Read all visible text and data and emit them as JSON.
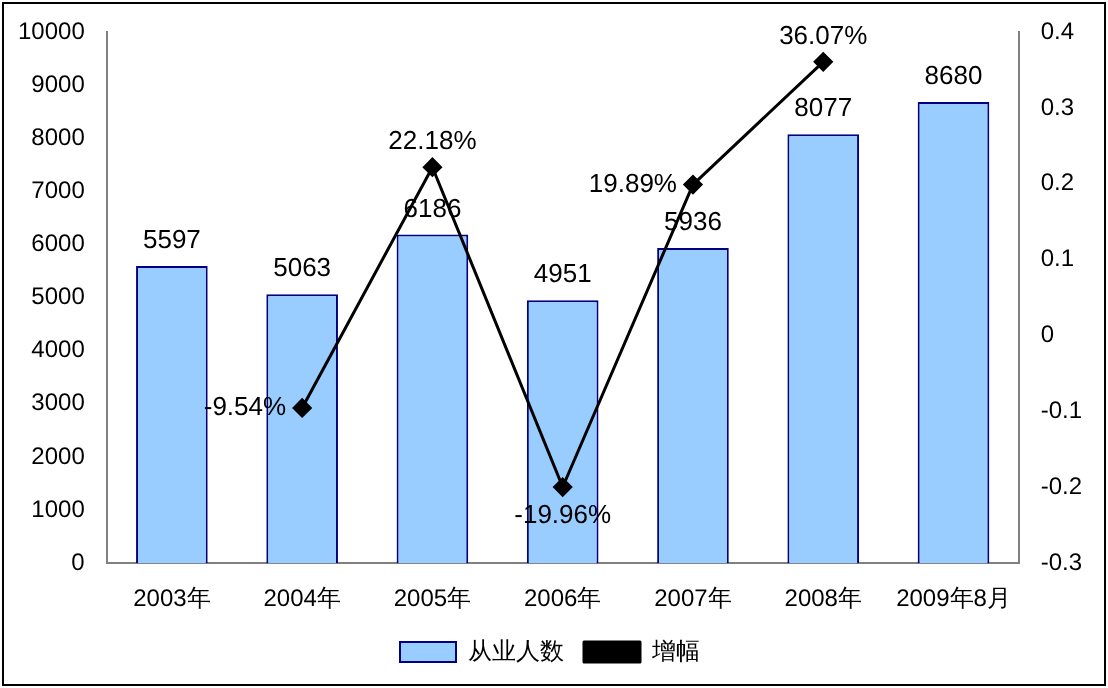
{
  "chart_data": {
    "type": "bar",
    "categories": [
      "2003年",
      "2004年",
      "2005年",
      "2006年",
      "2007年",
      "2008年",
      "2009年8月"
    ],
    "series": [
      {
        "name": "从业人数",
        "color": "#99ccff",
        "values": [
          5597,
          5063,
          6186,
          4951,
          5936,
          8077,
          8680
        ]
      },
      {
        "name": "增幅",
        "type": "line",
        "axis": "y2",
        "color": "#000000",
        "marker": "diamond",
        "values": [
          null,
          -0.0954,
          0.2218,
          -0.1996,
          0.1989,
          0.3607,
          null
        ],
        "value_labels": [
          null,
          "-9.54%",
          "22.18%",
          "-19.96%",
          "19.89%",
          "36.07%",
          null
        ]
      }
    ],
    "ylim": [
      0,
      10000
    ],
    "yticks": [
      0,
      1000,
      2000,
      3000,
      4000,
      5000,
      6000,
      7000,
      8000,
      9000,
      10000
    ],
    "y2lim": [
      -0.3,
      0.4
    ],
    "y2ticks": [
      -0.3,
      -0.2,
      -0.1,
      0,
      0.1,
      0.2,
      0.3,
      0.4
    ],
    "data_labels": true,
    "grid": false,
    "legend": "bottom"
  }
}
